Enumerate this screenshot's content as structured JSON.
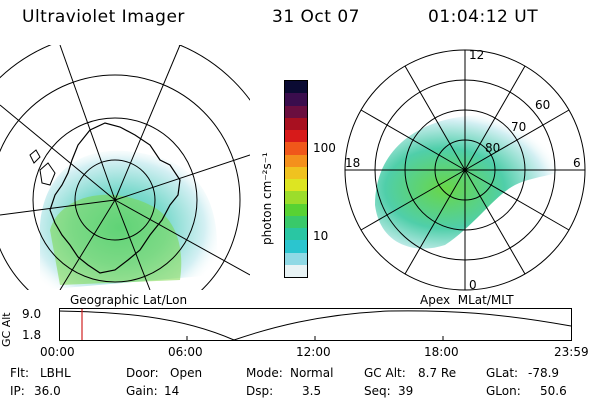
{
  "header": {
    "instrument": "Ultraviolet Imager",
    "date": "31 Oct 07",
    "time": "01:04:12 UT"
  },
  "colorbar": {
    "unit_label": "photon cm⁻²s⁻¹",
    "ticks": [
      "100",
      "10"
    ],
    "colors": [
      "#0b0b33",
      "#3a0d4d",
      "#6a0e3f",
      "#a81020",
      "#d71a1a",
      "#f0571a",
      "#f4901c",
      "#f0c21f",
      "#dde522",
      "#9cdd2b",
      "#58d233",
      "#39c96a",
      "#29c6a3",
      "#2bc5cf",
      "#8fd9e5",
      "#e8f3f5"
    ]
  },
  "left_map": {
    "label": "Geographic Lat/Lon"
  },
  "right_map": {
    "label": "Apex  MLat/MLT",
    "mlt_labels": [
      "12",
      "18",
      "6",
      "0"
    ],
    "mlat_labels": [
      "60",
      "70",
      "80"
    ]
  },
  "gc_alt_plot": {
    "ylabel": "GC Alt",
    "y_ticks": [
      "9.0",
      "1.8"
    ],
    "x_ticks": [
      "00:00",
      "06:00",
      "12:00",
      "18:00",
      "23:59"
    ],
    "marker_color": "#d02020"
  },
  "status": {
    "row1": [
      {
        "label": "Flt:",
        "value": "LBHL"
      },
      {
        "label": "Door:",
        "value": "Open"
      },
      {
        "label": "Mode:",
        "value": "Normal"
      },
      {
        "label": "GC Alt:",
        "value": "8.7 Re"
      },
      {
        "label": "GLat:",
        "value": "-78.9"
      }
    ],
    "row2": [
      {
        "label": "IP:",
        "value": "36.0"
      },
      {
        "label": "Gain:",
        "value": "14"
      },
      {
        "label": "Dsp:",
        "value": "3.5"
      },
      {
        "label": "Seq:",
        "value": "39"
      },
      {
        "label": "GLon:",
        "value": "50.6"
      }
    ]
  }
}
